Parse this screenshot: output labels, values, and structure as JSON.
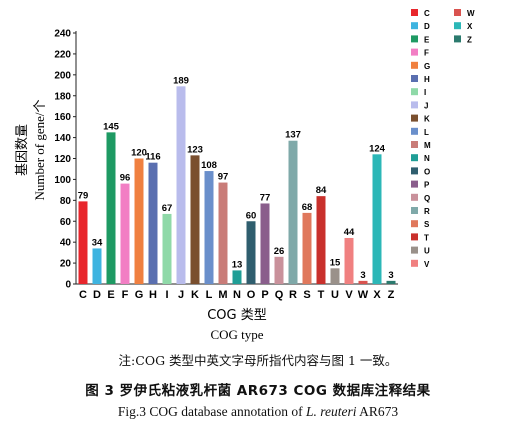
{
  "chart_data": {
    "type": "bar",
    "categories": [
      "C",
      "D",
      "E",
      "F",
      "G",
      "H",
      "I",
      "J",
      "K",
      "L",
      "M",
      "N",
      "O",
      "P",
      "Q",
      "R",
      "S",
      "T",
      "U",
      "V",
      "W",
      "X",
      "Z"
    ],
    "values": [
      79,
      34,
      145,
      96,
      120,
      116,
      67,
      189,
      123,
      108,
      97,
      13,
      60,
      77,
      26,
      137,
      68,
      84,
      15,
      44,
      3,
      124,
      3
    ],
    "colors": [
      "#e8262c",
      "#3eb4e0",
      "#1e9a63",
      "#f27ec4",
      "#f08040",
      "#5a6fb0",
      "#8fd9a8",
      "#b9bcec",
      "#7a4f2e",
      "#6a8fcb",
      "#c97c78",
      "#1f9e96",
      "#2f5e6e",
      "#8a5e8c",
      "#c9919b",
      "#7fa9a9",
      "#e0785c",
      "#c9302c",
      "#9a918a",
      "#f08080",
      "#d9534f",
      "#2bb7b7",
      "#2b7a6e"
    ],
    "ylabel_cn": "基因数量",
    "ylabel_en": "Number of gene/个",
    "xlabel_cn": "COG 类型",
    "xlabel_en": "COG type",
    "ylim": [
      0,
      240
    ],
    "yticks": [
      0,
      20,
      40,
      60,
      80,
      100,
      120,
      140,
      160,
      180,
      200,
      220,
      240
    ],
    "legend_placement": "right",
    "legend_columns": [
      [
        "C",
        "D",
        "E",
        "F",
        "G",
        "H",
        "I",
        "J",
        "K",
        "L",
        "M",
        "N",
        "O",
        "P",
        "Q",
        "R",
        "S",
        "T",
        "U",
        "V"
      ],
      [
        "W",
        "X",
        "Z"
      ]
    ],
    "grid": false
  },
  "captions": {
    "note": "注:COG 类型中英文字母所指代内容与图 1 一致。",
    "figure_cn": "图 3   罗伊氏粘液乳杆菌 AR673 COG 数据库注释结果",
    "figure_en_prefix": "Fig.3   COG database annotation of ",
    "figure_en_species": "L. reuteri",
    "figure_en_suffix": " AR673"
  }
}
